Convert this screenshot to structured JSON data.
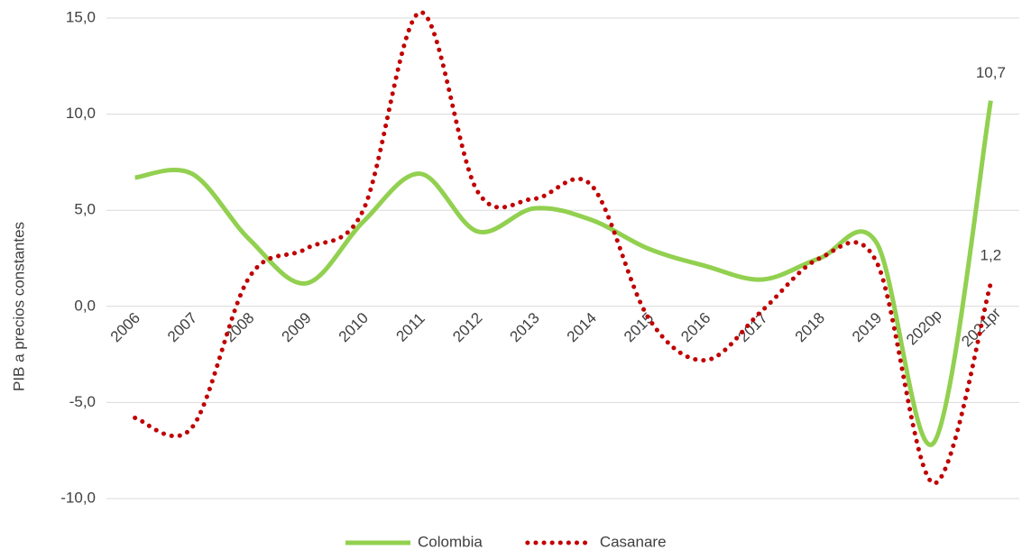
{
  "chart_data": {
    "type": "line",
    "y_axis_label": "PIB a precios constantes",
    "categories": [
      "2006",
      "2007",
      "2008",
      "2009",
      "2010",
      "2011",
      "2012",
      "2013",
      "2014",
      "2015",
      "2016",
      "2017",
      "2018",
      "2019",
      "2020p",
      "2021pr"
    ],
    "series": [
      {
        "name": "Colombia",
        "color": "#92d050",
        "style": "solid",
        "values": [
          6.7,
          6.9,
          3.5,
          1.2,
          4.4,
          6.9,
          3.9,
          5.1,
          4.5,
          3.0,
          2.1,
          1.4,
          2.5,
          3.3,
          -7.1,
          10.7
        ],
        "value_labels": [
          null,
          null,
          null,
          null,
          null,
          null,
          null,
          null,
          null,
          null,
          null,
          null,
          null,
          null,
          null,
          "10,7"
        ]
      },
      {
        "name": "Casanare",
        "color": "#c00000",
        "style": "dotted",
        "values": [
          -5.8,
          -6.3,
          1.5,
          3.0,
          5.0,
          15.3,
          6.0,
          5.6,
          6.3,
          -0.6,
          -2.8,
          -0.2,
          2.5,
          2.3,
          -9.2,
          1.2
        ],
        "value_labels": [
          null,
          null,
          null,
          null,
          null,
          null,
          null,
          null,
          null,
          null,
          null,
          null,
          null,
          null,
          null,
          "1,2"
        ]
      }
    ],
    "ylim": [
      -10,
      15
    ],
    "yticks": [
      {
        "value": -10,
        "label": "-10,0"
      },
      {
        "value": -5,
        "label": "-5,0"
      },
      {
        "value": 0,
        "label": "0,0"
      },
      {
        "value": 5,
        "label": "5,0"
      },
      {
        "value": 10,
        "label": "10,0"
      },
      {
        "value": 15,
        "label": "15,0"
      }
    ],
    "grid": true,
    "legend": "bottom"
  }
}
